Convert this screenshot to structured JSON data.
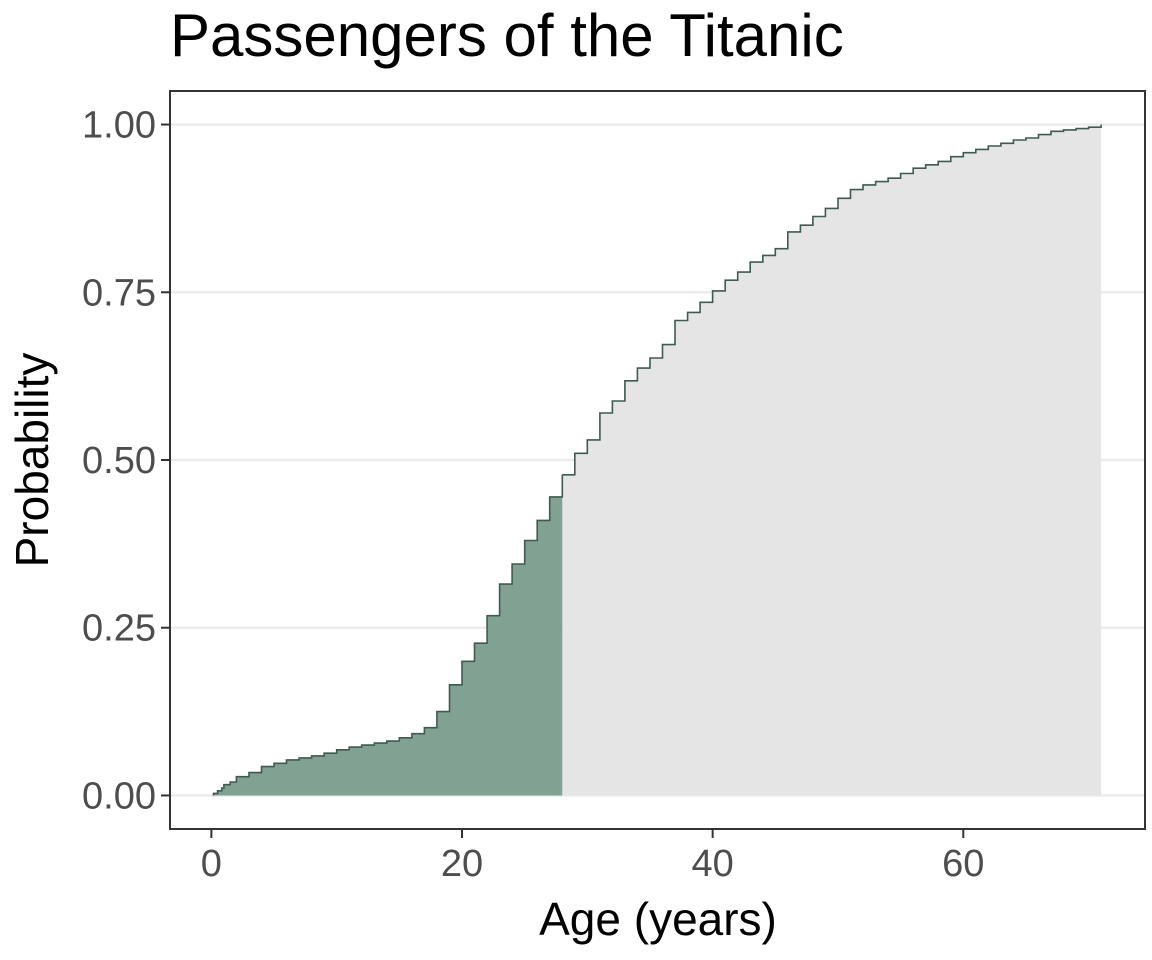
{
  "chart_data": {
    "type": "area",
    "title": "Passengers of the Titanic",
    "xlabel": "Age (years)",
    "ylabel": "Probability",
    "xlim": [
      -3.3,
      74.5
    ],
    "ylim": [
      -0.05,
      1.05
    ],
    "x_ticks": [
      0,
      20,
      40,
      60
    ],
    "x_tick_labels": [
      "0",
      "20",
      "40",
      "60"
    ],
    "y_ticks": [
      0,
      0.25,
      0.5,
      0.75,
      1.0
    ],
    "y_tick_labels": [
      "0.00",
      "0.25",
      "0.50",
      "0.75",
      "1.00"
    ],
    "grid": "horizontal",
    "highlight_upto_x": 28,
    "series": [
      {
        "x": [
          0.17,
          0.5,
          0.83,
          1,
          1.5,
          2,
          3,
          4,
          5,
          6,
          7,
          8,
          9,
          10,
          11,
          12,
          13,
          14,
          15,
          16,
          17,
          18,
          19,
          20,
          21,
          22,
          23,
          24,
          25,
          26,
          27,
          28,
          29,
          30,
          31,
          32,
          33,
          34,
          35,
          36,
          37,
          38,
          39,
          40,
          41,
          42,
          43,
          44,
          45,
          46,
          47,
          48,
          49,
          50,
          51,
          52,
          53,
          54,
          55,
          56,
          57,
          58,
          59,
          60,
          61,
          62,
          63,
          64,
          65,
          66,
          67,
          68,
          69,
          70,
          71
        ],
        "y": [
          0.003,
          0.007,
          0.011,
          0.016,
          0.02,
          0.028,
          0.034,
          0.043,
          0.048,
          0.053,
          0.056,
          0.059,
          0.063,
          0.068,
          0.072,
          0.075,
          0.078,
          0.081,
          0.086,
          0.092,
          0.101,
          0.125,
          0.165,
          0.2,
          0.227,
          0.268,
          0.315,
          0.345,
          0.38,
          0.41,
          0.445,
          0.478,
          0.51,
          0.53,
          0.57,
          0.588,
          0.618,
          0.637,
          0.652,
          0.672,
          0.708,
          0.72,
          0.735,
          0.752,
          0.768,
          0.78,
          0.795,
          0.805,
          0.815,
          0.84,
          0.85,
          0.863,
          0.875,
          0.89,
          0.903,
          0.91,
          0.915,
          0.92,
          0.927,
          0.935,
          0.94,
          0.945,
          0.952,
          0.958,
          0.963,
          0.968,
          0.972,
          0.977,
          0.98,
          0.985,
          0.99,
          0.992,
          0.994,
          0.996,
          1.0
        ]
      }
    ],
    "colors": {
      "highlight_fill": "#7a9c8d",
      "remaining_fill": "#e5e5e5",
      "line": "#3f5b50",
      "grid": "#ebebeb",
      "panel_border": "#333333",
      "tick_label": "#4d4d4d"
    }
  }
}
